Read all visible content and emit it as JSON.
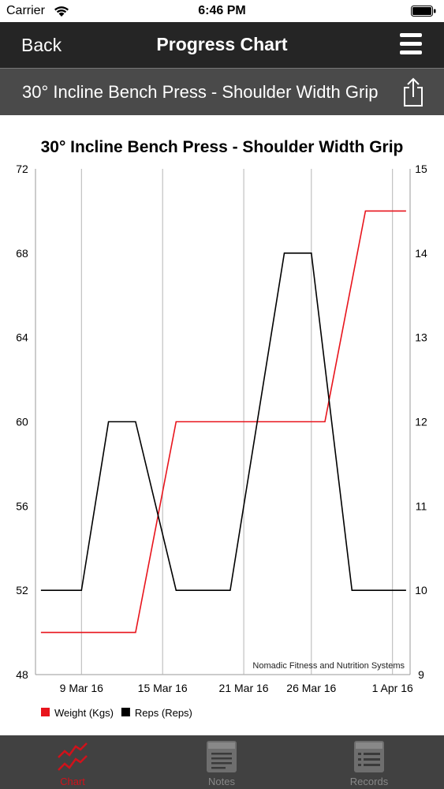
{
  "status_bar": {
    "carrier": "Carrier",
    "time": "6:46 PM"
  },
  "nav": {
    "back_label": "Back",
    "title": "Progress Chart"
  },
  "subheader": {
    "exercise": "30° Incline Bench Press - Shoulder Width Grip"
  },
  "colors": {
    "weight_line": "#e8141c",
    "reps_line": "#000000",
    "tab_active": "#d0121b"
  },
  "chart_data": {
    "type": "line",
    "title": "30° Incline Bench Press - Shoulder Width Grip",
    "watermark": "Nomadic Fitness and Nutrition Systems",
    "x_ticks": [
      "9 Mar 16",
      "15 Mar 16",
      "21 Mar 16",
      "26 Mar 16",
      "1 Apr 16"
    ],
    "y_left": {
      "min": 48,
      "max": 72,
      "ticks": [
        "48",
        "52",
        "56",
        "60",
        "64",
        "68",
        "72"
      ]
    },
    "y_right": {
      "min": 9,
      "max": 15,
      "ticks": [
        "9",
        "10",
        "11",
        "12",
        "13",
        "14",
        "15"
      ]
    },
    "grid": "vertical",
    "legend": {
      "placement": "bottom-left"
    },
    "series": [
      {
        "name": "Weight (Kgs)",
        "axis": "left",
        "color": "#e8141c",
        "points": [
          {
            "x": "6 Mar 16",
            "y": 50
          },
          {
            "x": "13 Mar 16",
            "y": 50
          },
          {
            "x": "16 Mar 16",
            "y": 60
          },
          {
            "x": "27 Mar 16",
            "y": 60
          },
          {
            "x": "30 Mar 16",
            "y": 70
          },
          {
            "x": "2 Apr 16",
            "y": 70
          }
        ]
      },
      {
        "name": "Reps (Reps)",
        "axis": "right",
        "color": "#000000",
        "points": [
          {
            "x": "6 Mar 16",
            "y": 10
          },
          {
            "x": "9 Mar 16",
            "y": 10
          },
          {
            "x": "11 Mar 16",
            "y": 12
          },
          {
            "x": "13 Mar 16",
            "y": 12
          },
          {
            "x": "16 Mar 16",
            "y": 10
          },
          {
            "x": "20 Mar 16",
            "y": 10
          },
          {
            "x": "24 Mar 16",
            "y": 14
          },
          {
            "x": "26 Mar 16",
            "y": 14
          },
          {
            "x": "29 Mar 16",
            "y": 10
          },
          {
            "x": "2 Apr 16",
            "y": 10
          }
        ]
      }
    ]
  },
  "tabs": [
    {
      "label": "Chart",
      "icon": "chart-icon",
      "active": true
    },
    {
      "label": "Notes",
      "icon": "notes-icon",
      "active": false
    },
    {
      "label": "Records",
      "icon": "records-icon",
      "active": false
    }
  ]
}
